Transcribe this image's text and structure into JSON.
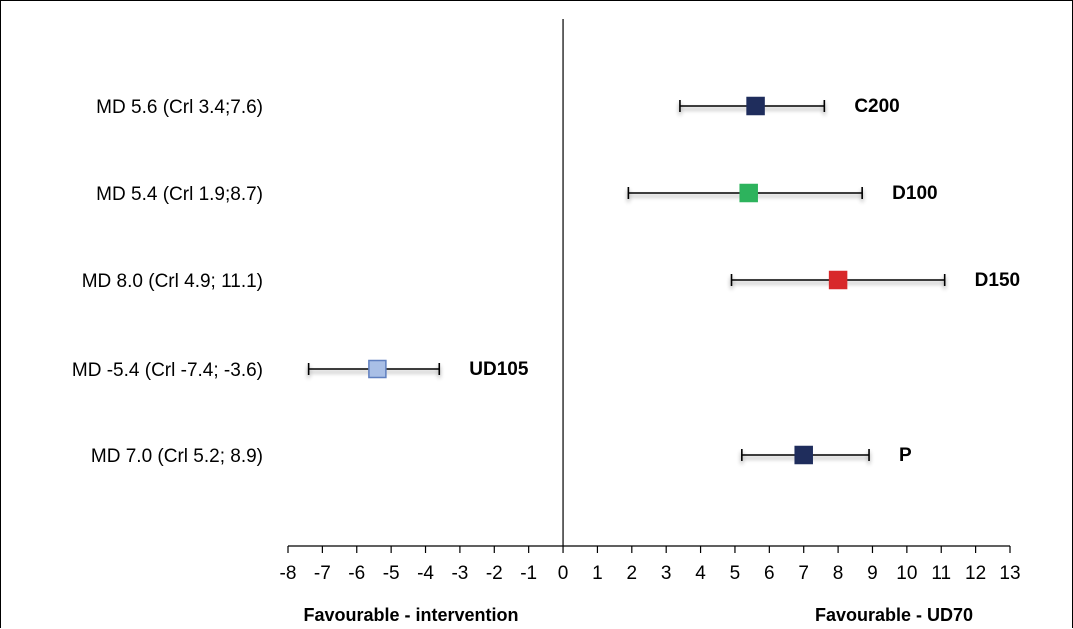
{
  "chart_data": {
    "type": "scatter",
    "subtype": "forest-plot",
    "title": "",
    "xlim": [
      -8,
      13
    ],
    "xticks": [
      -8,
      -7,
      -6,
      -5,
      -4,
      -3,
      -2,
      -1,
      0,
      1,
      2,
      3,
      4,
      5,
      6,
      7,
      8,
      9,
      10,
      11,
      12,
      13
    ],
    "reference_line_x": 0,
    "grid": false,
    "footer_left": "Favourable - intervention",
    "footer_right": "Favourable - UD70",
    "series": [
      {
        "name": "C200",
        "md_label": "MD 5.6 (Crl 3.4;7.6)",
        "estimate": 5.6,
        "lower": 3.4,
        "upper": 7.6,
        "marker_color": "#1f2d5c",
        "marker_stroke": "#1f2d5c"
      },
      {
        "name": "D100",
        "md_label": "MD 5.4 (Crl 1.9;8.7)",
        "estimate": 5.4,
        "lower": 1.9,
        "upper": 8.7,
        "marker_color": "#2db35d",
        "marker_stroke": "#2db35d"
      },
      {
        "name": "D150",
        "md_label": "MD 8.0 (Crl 4.9; 11.1)",
        "estimate": 8.0,
        "lower": 4.9,
        "upper": 11.1,
        "marker_color": "#d8282a",
        "marker_stroke": "#d8282a"
      },
      {
        "name": "UD105",
        "md_label": "MD -5.4 (Crl -7.4; -3.6)",
        "estimate": -5.4,
        "lower": -7.4,
        "upper": -3.6,
        "marker_color": "#a9bfe6",
        "marker_stroke": "#5f7fbf"
      },
      {
        "name": "P",
        "md_label": "MD 7.0 (Crl 5.2; 8.9)",
        "estimate": 7.0,
        "lower": 5.2,
        "upper": 8.9,
        "marker_color": "#1f2d5c",
        "marker_stroke": "#1f2d5c"
      }
    ]
  }
}
